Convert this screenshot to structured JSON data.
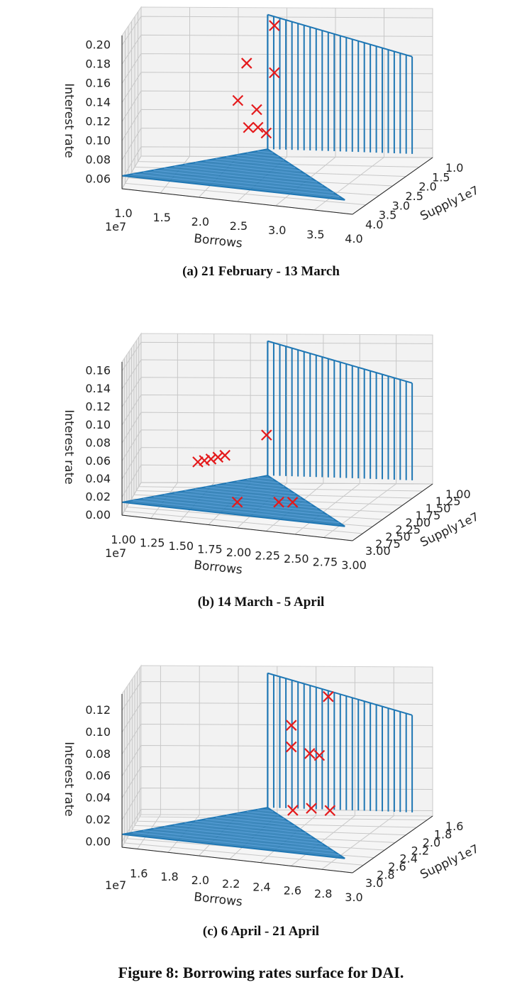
{
  "figure_caption": "Figure 8: Borrowing rates surface for DAI.",
  "chart_data": [
    {
      "type": "surface3d",
      "caption": "(a) 21 February - 13 March",
      "xlabel": "Borrows",
      "ylabel": "Supply",
      "zlabel": "Interest rate",
      "x_offset": "1e7",
      "y_offset": "1e7",
      "xticks": [
        "1.0",
        "1.5",
        "2.0",
        "2.5",
        "3.0",
        "3.5",
        "4.0"
      ],
      "yticks": [
        "1.0",
        "1.5",
        "2.0",
        "2.5",
        "3.0",
        "3.5",
        "4.0"
      ],
      "zticks": [
        "0.06",
        "0.08",
        "0.10",
        "0.12",
        "0.14",
        "0.16",
        "0.18",
        "0.20"
      ],
      "xlim": [
        1.0,
        4.0
      ],
      "ylim": [
        1.0,
        4.0
      ],
      "zlim": [
        0.05,
        0.21
      ],
      "surface_color": "#1f77b4",
      "marker_color": "#e41a1c",
      "grid": true,
      "observations": [
        {
          "x": 2.6,
          "y": 3.1,
          "z": 0.21
        },
        {
          "x": 2.3,
          "y": 3.3,
          "z": 0.17
        },
        {
          "x": 2.6,
          "y": 3.1,
          "z": 0.16
        },
        {
          "x": 2.2,
          "y": 3.3,
          "z": 0.13
        },
        {
          "x": 2.4,
          "y": 3.1,
          "z": 0.12
        },
        {
          "x": 2.3,
          "y": 3.0,
          "z": 0.1
        },
        {
          "x": 2.4,
          "y": 2.9,
          "z": 0.1
        },
        {
          "x": 2.5,
          "y": 3.0,
          "z": 0.095
        }
      ]
    },
    {
      "type": "surface3d",
      "caption": "(b) 14 March - 5 April",
      "xlabel": "Borrows",
      "ylabel": "Supply",
      "zlabel": "Interest rate",
      "x_offset": "1e7",
      "y_offset": "1e7",
      "xticks": [
        "1.00",
        "1.25",
        "1.50",
        "1.75",
        "2.00",
        "2.25",
        "2.50",
        "2.75",
        "3.00"
      ],
      "yticks": [
        "1.00",
        "1.25",
        "1.50",
        "1.75",
        "2.00",
        "2.25",
        "2.50",
        "2.75",
        "3.00"
      ],
      "zticks": [
        "0.00",
        "0.02",
        "0.04",
        "0.06",
        "0.08",
        "0.10",
        "0.12",
        "0.14",
        "0.16"
      ],
      "xlim": [
        1.0,
        3.0
      ],
      "ylim": [
        1.0,
        3.0
      ],
      "zlim": [
        0.0,
        0.17
      ],
      "surface_color": "#1f77b4",
      "marker_color": "#e41a1c",
      "grid": true,
      "observations": [
        {
          "x": 2.0,
          "y": 2.3,
          "z": 0.075
        },
        {
          "x": 1.5,
          "y": 2.6,
          "z": 0.044
        },
        {
          "x": 1.55,
          "y": 2.6,
          "z": 0.046
        },
        {
          "x": 1.6,
          "y": 2.6,
          "z": 0.048
        },
        {
          "x": 1.65,
          "y": 2.55,
          "z": 0.05
        },
        {
          "x": 1.7,
          "y": 2.5,
          "z": 0.052
        },
        {
          "x": 1.8,
          "y": 2.6,
          "z": 0.001
        },
        {
          "x": 2.1,
          "y": 2.4,
          "z": 0.001
        },
        {
          "x": 2.2,
          "y": 2.35,
          "z": 0.001
        }
      ]
    },
    {
      "type": "surface3d",
      "caption": "(c) 6 April - 21 April",
      "xlabel": "Borrows",
      "ylabel": "Supply",
      "zlabel": "Interest rate",
      "x_offset": "1e7",
      "y_offset": "1e7",
      "xticks": [
        "1.6",
        "1.8",
        "2.0",
        "2.2",
        "2.4",
        "2.6",
        "2.8",
        "3.0"
      ],
      "yticks": [
        "1.6",
        "1.8",
        "2.0",
        "2.2",
        "2.4",
        "2.6",
        "2.8",
        "3.0"
      ],
      "zticks": [
        "0.00",
        "0.02",
        "0.04",
        "0.06",
        "0.08",
        "0.10",
        "0.12"
      ],
      "xlim": [
        1.5,
        3.0
      ],
      "ylim": [
        1.5,
        3.0
      ],
      "zlim": [
        -0.005,
        0.135
      ],
      "surface_color": "#1f77b4",
      "marker_color": "#e41a1c",
      "grid": true,
      "observations": [
        {
          "x": 2.6,
          "y": 2.5,
          "z": 0.125
        },
        {
          "x": 2.4,
          "y": 2.6,
          "z": 0.098
        },
        {
          "x": 2.4,
          "y": 2.6,
          "z": 0.078
        },
        {
          "x": 2.5,
          "y": 2.55,
          "z": 0.072
        },
        {
          "x": 2.55,
          "y": 2.5,
          "z": 0.07
        },
        {
          "x": 2.4,
          "y": 2.5,
          "z": 0.018
        },
        {
          "x": 2.5,
          "y": 2.45,
          "z": 0.02
        },
        {
          "x": 2.6,
          "y": 2.4,
          "z": 0.018
        }
      ]
    }
  ]
}
